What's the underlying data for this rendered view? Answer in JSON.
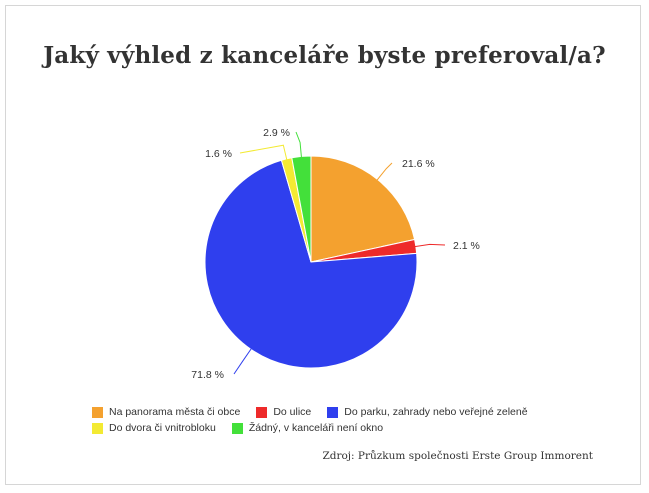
{
  "title": "Jaký výhled z kanceláře byste preferoval/a?",
  "source": "Zdroj: Průzkum společnosti Erste Group Immorent",
  "chart_data": {
    "type": "pie",
    "title": "Jaký výhled z kanceláře byste preferoval/a?",
    "unit": "%",
    "start_angle_deg": 0,
    "direction": "clockwise",
    "legend_position": "bottom",
    "slices": [
      {
        "label": "Na panorama města či obce",
        "value": 21.6,
        "value_label": "21.6 %",
        "color": "#f4a12f"
      },
      {
        "label": "Do ulice",
        "value": 2.1,
        "value_label": "2.1 %",
        "color": "#ee2a2a"
      },
      {
        "label": "Do parku, zahrady nebo veřejné zeleně",
        "value": 71.8,
        "value_label": "71.8 %",
        "color": "#2f3fee"
      },
      {
        "label": "Do dvora či vnitrobloku",
        "value": 1.6,
        "value_label": "1.6 %",
        "color": "#f3ea33"
      },
      {
        "label": "Žádný, v kanceláři není okno",
        "value": 2.9,
        "value_label": "2.9 %",
        "color": "#43e03a"
      }
    ]
  }
}
